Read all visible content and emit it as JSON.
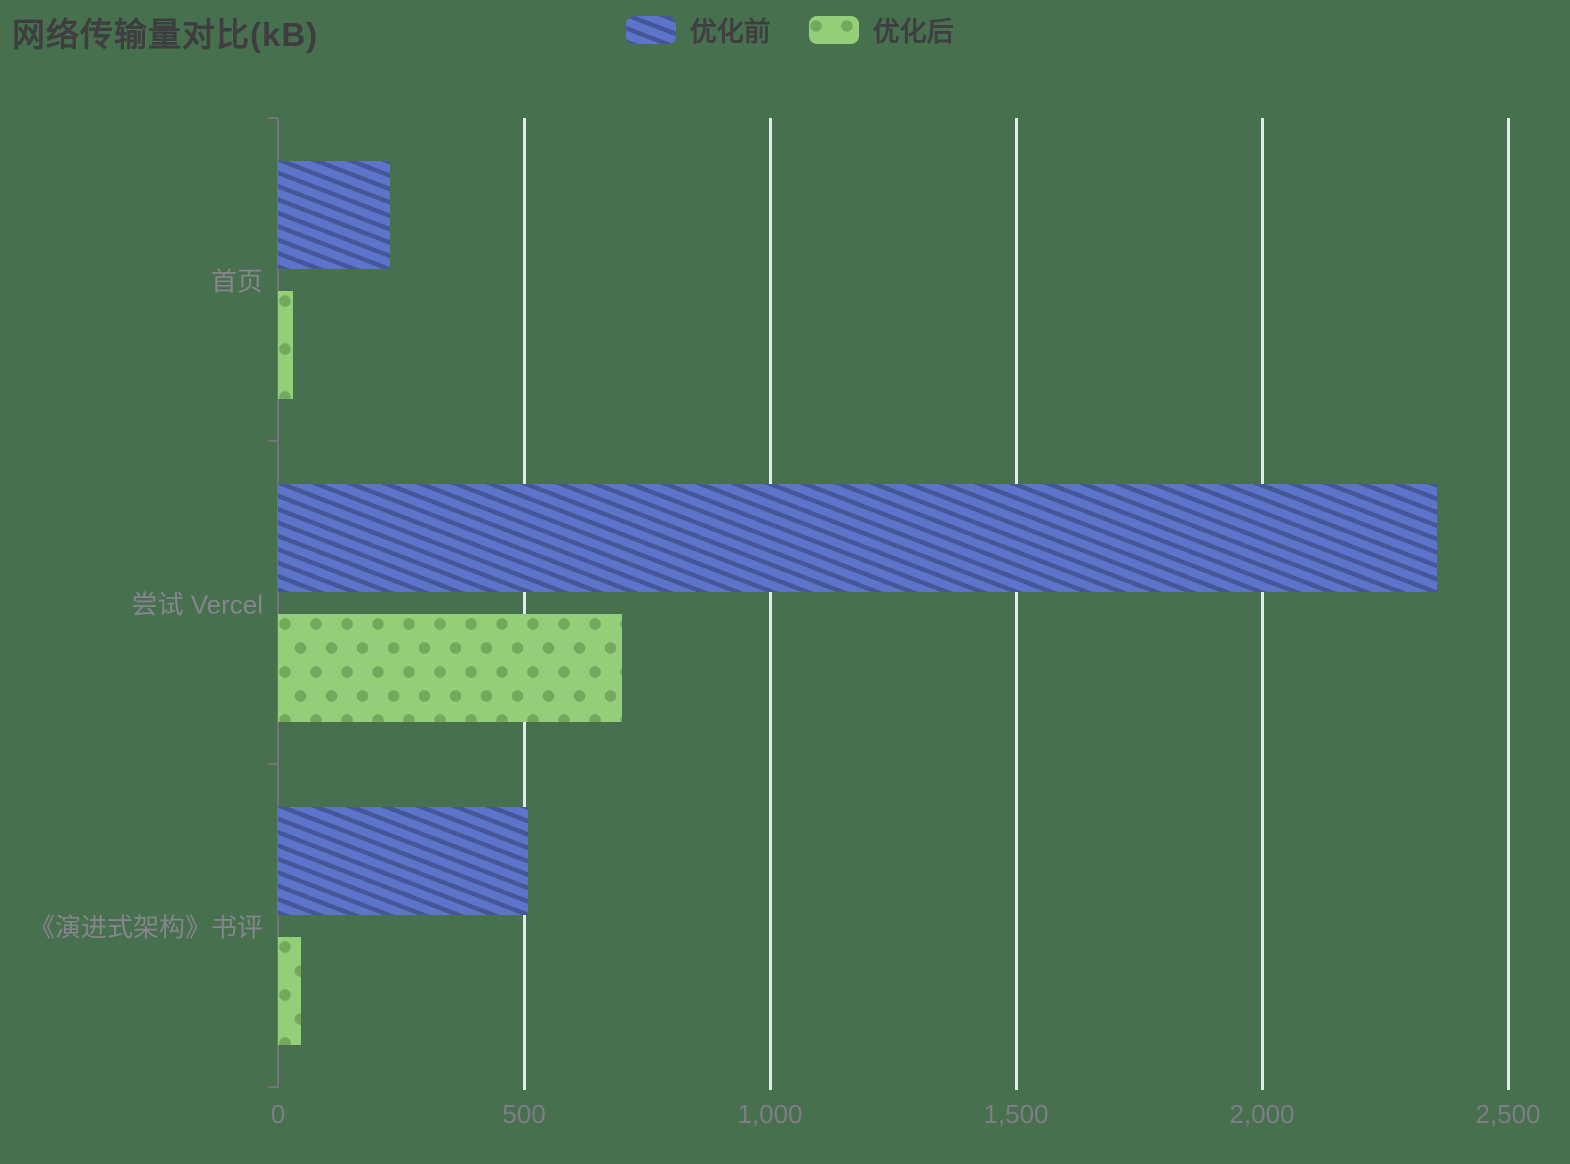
{
  "title": "网络传输量对比(kB)",
  "legend": [
    {
      "name": "优化前",
      "pattern": "stripes",
      "color": "#5C74C9",
      "pattern_color": "#455798"
    },
    {
      "name": "优化后",
      "pattern": "dots",
      "color": "#94CE78",
      "pattern_color": "#73A85D"
    }
  ],
  "chart_data": {
    "type": "bar",
    "orientation": "horizontal",
    "title": "网络传输量对比(kB)",
    "unit": "kB",
    "categories": [
      "首页",
      "尝试 Vercel",
      "《演进式架构》书评"
    ],
    "series": [
      {
        "name": "优化前",
        "values": [
          228,
          2355,
          508
        ]
      },
      {
        "name": "优化后",
        "values": [
          30,
          700,
          46
        ]
      }
    ],
    "xlim": [
      0,
      2500
    ],
    "x_ticks": [
      0,
      500,
      1000,
      1500,
      2000,
      2500
    ],
    "x_tick_labels": [
      "0",
      "500",
      "1,000",
      "1,500",
      "2,000",
      "2,500"
    ],
    "grid": true,
    "legend_position": "top-center"
  },
  "colors": {
    "background": "#47704E",
    "grid": "#E2E9F0",
    "axis": "#75737A",
    "title_text": "#3E3E40",
    "legend_text": "#3F3F41",
    "category_label_text": "#86858D",
    "x_tick_label_text": "#7E7C86"
  }
}
